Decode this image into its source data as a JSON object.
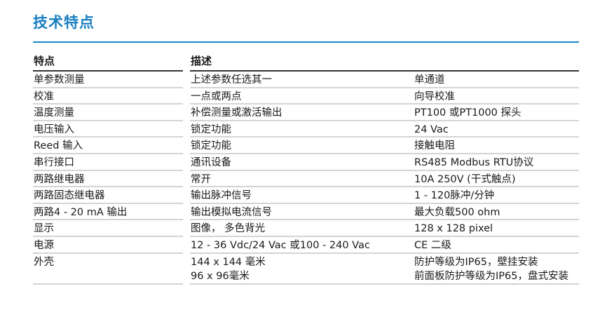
{
  "title": "技术特点",
  "colors": {
    "title": "#1a7fc1",
    "rule": "#1a88c9"
  },
  "header": {
    "feature": "特点",
    "description": "描述"
  },
  "rows": [
    {
      "feature": "单参数测量",
      "description": "上述参数任选其一",
      "value": "单通道"
    },
    {
      "feature": "校准",
      "description": "一点或两点",
      "value": "向导校准"
    },
    {
      "feature": "温度测量",
      "description": "补偿测量或激活输出",
      "value": "PT100 或PT1000 探头"
    },
    {
      "feature": "电压输入",
      "description": "锁定功能",
      "value": "24 Vac"
    },
    {
      "feature": "Reed 输入",
      "description": "锁定功能",
      "value": "接触电阻"
    },
    {
      "feature": "串行接口",
      "description": "通讯设备",
      "value": "RS485 Modbus RTU协议"
    },
    {
      "feature": "两路继电器",
      "description": "常开",
      "value": "10A 250V (干式触点)"
    },
    {
      "feature": "两路固态继电器",
      "description": "输出脉冲信号",
      "value": "1 - 120脉冲/分钟"
    },
    {
      "feature": "两路4 - 20 mA 输出",
      "description": "输出模拟电流信号",
      "value": "最大负载500 ohm"
    },
    {
      "feature": "显示",
      "description": "图像， 多色背光",
      "value": "128 x 128 pixel"
    },
    {
      "feature": "电源",
      "description": "12 - 36 Vdc/24 Vac 或100 - 240 Vac",
      "value": "CE 二级"
    },
    {
      "feature": "外壳",
      "description": "144 x 144 毫米",
      "description2": "96 x 96毫米",
      "value": "防护等级为IP65，壁挂安装",
      "value2": "前面板防护等级为IP65，盘式安装"
    }
  ]
}
